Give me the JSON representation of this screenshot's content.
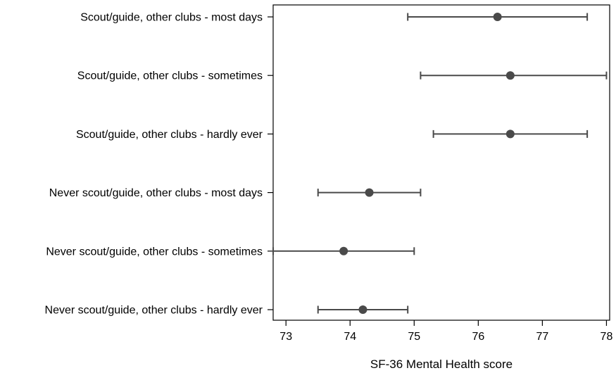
{
  "chart_data": {
    "type": "scatter",
    "title": "",
    "xlabel": "SF-36 Mental Health score",
    "ylabel": "",
    "xlim": [
      72.8,
      78.05
    ],
    "xticks": [
      73,
      74,
      75,
      76,
      77,
      78
    ],
    "grid": false,
    "categories": [
      "Scout/guide, other clubs - most days",
      "Scout/guide, other clubs - sometimes",
      "Scout/guide, other clubs - hardly ever",
      "Never scout/guide, other clubs - most days",
      "Never scout/guide, other clubs - sometimes",
      "Never scout/guide, other clubs - hardly ever"
    ],
    "estimates": [
      76.3,
      76.5,
      76.5,
      74.3,
      73.9,
      74.2
    ],
    "ci_lower": [
      74.9,
      75.1,
      75.3,
      73.5,
      72.8,
      73.5
    ],
    "ci_upper": [
      77.7,
      78.0,
      77.7,
      75.1,
      75.0,
      74.9
    ],
    "colors": {
      "marker": "#4a4a4a",
      "line": "#4a4a4a"
    }
  }
}
